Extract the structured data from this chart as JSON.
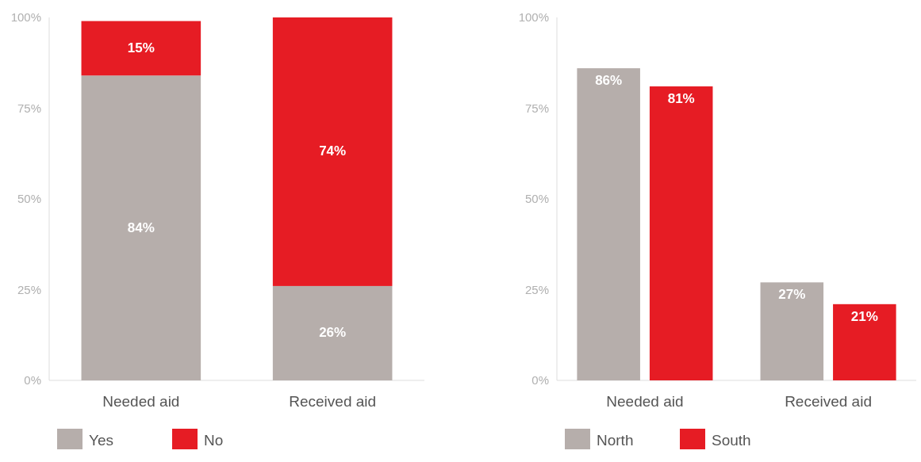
{
  "chart_data": [
    {
      "type": "bar",
      "stacked": true,
      "categories": [
        "Needed aid",
        "Received aid"
      ],
      "series": [
        {
          "name": "Yes",
          "color": "#b6aeab",
          "values": [
            84,
            26
          ],
          "value_labels": [
            "84%",
            "26%"
          ]
        },
        {
          "name": "No",
          "color": "#e61c24",
          "values": [
            15,
            74
          ],
          "value_labels": [
            "15%",
            "74%"
          ]
        }
      ],
      "ylim": [
        0,
        100
      ],
      "yticks": [
        {
          "value": 0,
          "label": "0%"
        },
        {
          "value": 25,
          "label": "25%"
        },
        {
          "value": 50,
          "label": "50%"
        },
        {
          "value": 75,
          "label": "75%"
        },
        {
          "value": 100,
          "label": "100%"
        }
      ],
      "legend": "bottom",
      "grid": false
    },
    {
      "type": "bar",
      "categories": [
        "Needed aid",
        "Received aid"
      ],
      "series": [
        {
          "name": "North",
          "color": "#b6aeab",
          "values": [
            86,
            27
          ],
          "value_labels": [
            "86%",
            "27%"
          ]
        },
        {
          "name": "South",
          "color": "#e61c24",
          "values": [
            81,
            21
          ],
          "value_labels": [
            "81%",
            "21%"
          ]
        }
      ],
      "ylim": [
        0,
        100
      ],
      "yticks": [
        {
          "value": 0,
          "label": "0%"
        },
        {
          "value": 25,
          "label": "25%"
        },
        {
          "value": 50,
          "label": "50%"
        },
        {
          "value": 75,
          "label": "75%"
        },
        {
          "value": 100,
          "label": "100%"
        }
      ],
      "legend": "bottom",
      "grid": false
    }
  ]
}
